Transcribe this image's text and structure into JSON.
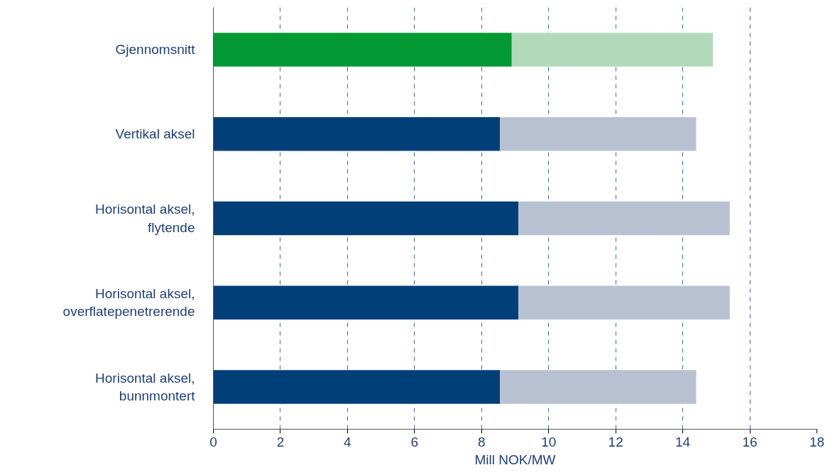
{
  "chart_data": {
    "type": "bar",
    "orientation": "horizontal",
    "stacked": true,
    "xlabel": "Mill NOK/MW",
    "categories": [
      "Gjennomsnitt",
      "Vertikal aksel",
      "Horisontal aksel,\nflytende",
      "Horisontal aksel,\noverflatepenetrerende",
      "Horisontal aksel,\nbunnmontert"
    ],
    "series": [
      {
        "colors": [
          "#009933",
          "#003f78",
          "#003f78",
          "#003f78",
          "#003f78"
        ],
        "values": [
          8.9,
          8.55,
          9.1,
          9.1,
          8.55
        ]
      },
      {
        "colors": [
          "#b3d9bb",
          "#b8c1d2",
          "#b8c1d2",
          "#b8c1d2",
          "#b8c1d2"
        ],
        "values": [
          6.0,
          5.85,
          6.3,
          6.3,
          5.85
        ]
      }
    ],
    "xlim": [
      0,
      18
    ],
    "xticks": [
      0,
      2,
      4,
      6,
      8,
      10,
      12,
      14,
      16,
      18
    ],
    "grid": "x"
  }
}
